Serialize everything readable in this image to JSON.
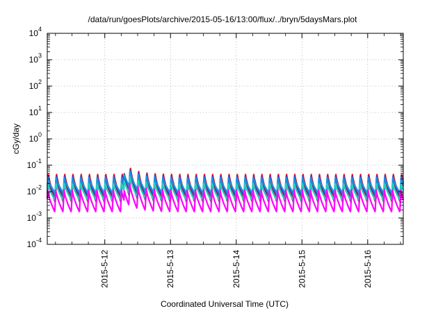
{
  "chart_data": {
    "type": "line",
    "title": "/data/run/goesPlots/archive/2015-05-16/13:00/flux/../bryn/5daysMars.plot",
    "xlabel": "Coordinated Universal Time (UTC)",
    "ylabel": "cGy/day",
    "yscale": "log",
    "ylim": [
      0.0001,
      10000
    ],
    "y_ticks": [
      {
        "base": "10",
        "exp": "-4"
      },
      {
        "base": "10",
        "exp": "-3"
      },
      {
        "base": "10",
        "exp": "-2"
      },
      {
        "base": "10",
        "exp": "-1"
      },
      {
        "base": "10",
        "exp": "0"
      },
      {
        "base": "10",
        "exp": "1"
      },
      {
        "base": "10",
        "exp": "2"
      },
      {
        "base": "10",
        "exp": "3"
      },
      {
        "base": "10",
        "exp": "4"
      }
    ],
    "xlim": [
      "2015-05-11 03:00",
      "2015-05-16 13:00"
    ],
    "x_ticks": [
      "2015-5-12",
      "2015-5-13",
      "2015-5-14",
      "2015-5-15",
      "2015-5-16"
    ],
    "grid": true,
    "legend": "none",
    "cycle_hours": 3,
    "series": [
      {
        "color": "#e0141e",
        "peak": 0.05,
        "trough": 0.0055
      },
      {
        "color": "#8b2a5a",
        "peak": 0.042,
        "trough": 0.0038
      },
      {
        "color": "#2a4bd7",
        "peak": 0.04,
        "trough": 0.007
      },
      {
        "color": "#1a8fe0",
        "peak": 0.035,
        "trough": 0.009
      },
      {
        "color": "#20d0c0",
        "peak": 0.022,
        "trough": 0.0048
      },
      {
        "color": "#ff00ff",
        "peak": 0.012,
        "trough": 0.0017
      }
    ],
    "event": {
      "start": "2015-05-12 07:00",
      "peak_factor": 2.4
    }
  }
}
